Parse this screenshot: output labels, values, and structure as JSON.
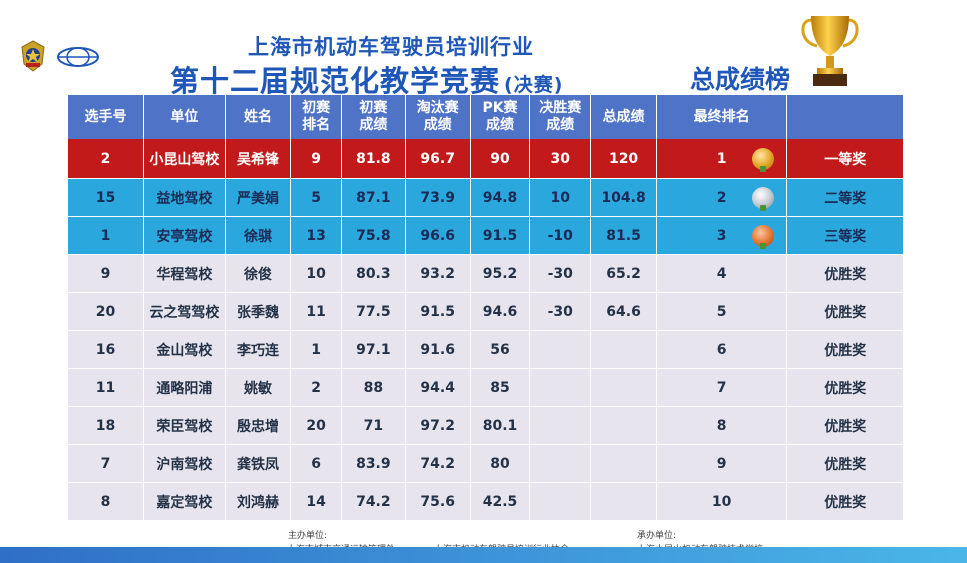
{
  "header": {
    "org_title": "上海市机动车驾驶员培训行业",
    "main_title": "第十二届规范化教学竞赛",
    "main_title_sub": "(决赛)",
    "board_title": "总成绩榜"
  },
  "table": {
    "columns": [
      {
        "key": "no",
        "line1": "选手号",
        "line2": ""
      },
      {
        "key": "unit",
        "line1": "单位",
        "line2": ""
      },
      {
        "key": "name",
        "line1": "姓名",
        "line2": ""
      },
      {
        "key": "prelim_rank",
        "line1": "初赛",
        "line2": "排名"
      },
      {
        "key": "prelim_score",
        "line1": "初赛",
        "line2": "成绩"
      },
      {
        "key": "elim_score",
        "line1": "淘汰赛",
        "line2": "成绩"
      },
      {
        "key": "pk_score",
        "line1": "PK赛",
        "line2": "成绩"
      },
      {
        "key": "final_score",
        "line1": "决胜赛",
        "line2": "成绩"
      },
      {
        "key": "total",
        "line1": "总成绩",
        "line2": ""
      },
      {
        "key": "rank",
        "line1": "最终排名",
        "line2": ""
      },
      {
        "key": "award",
        "line1": "",
        "line2": ""
      }
    ],
    "rows": [
      {
        "no": "2",
        "unit": "小昆山驾校",
        "name": "吴希锋",
        "prelim_rank": "9",
        "prelim_score": "81.8",
        "elim_score": "96.7",
        "pk_score": "90",
        "final_score": "30",
        "total": "120",
        "rank": "1",
        "award": "一等奖",
        "medal": "gold"
      },
      {
        "no": "15",
        "unit": "益地驾校",
        "name": "严美娟",
        "prelim_rank": "5",
        "prelim_score": "87.1",
        "elim_score": "73.9",
        "pk_score": "94.8",
        "final_score": "10",
        "total": "104.8",
        "rank": "2",
        "award": "二等奖",
        "medal": "silver"
      },
      {
        "no": "1",
        "unit": "安亭驾校",
        "name": "徐骐",
        "prelim_rank": "13",
        "prelim_score": "75.8",
        "elim_score": "96.6",
        "pk_score": "91.5",
        "final_score": "-10",
        "total": "81.5",
        "rank": "3",
        "award": "三等奖",
        "medal": "bronze"
      },
      {
        "no": "9",
        "unit": "华程驾校",
        "name": "徐俊",
        "prelim_rank": "10",
        "prelim_score": "80.3",
        "elim_score": "93.2",
        "pk_score": "95.2",
        "final_score": "-30",
        "total": "65.2",
        "rank": "4",
        "award": "优胜奖",
        "medal": ""
      },
      {
        "no": "20",
        "unit": "云之驾驾校",
        "name": "张季魏",
        "prelim_rank": "11",
        "prelim_score": "77.5",
        "elim_score": "91.5",
        "pk_score": "94.6",
        "final_score": "-30",
        "total": "64.6",
        "rank": "5",
        "award": "优胜奖",
        "medal": ""
      },
      {
        "no": "16",
        "unit": "金山驾校",
        "name": "李巧连",
        "prelim_rank": "1",
        "prelim_score": "97.1",
        "elim_score": "91.6",
        "pk_score": "56",
        "final_score": "",
        "total": "",
        "rank": "6",
        "award": "优胜奖",
        "medal": ""
      },
      {
        "no": "11",
        "unit": "通略阳浦",
        "name": "姚敏",
        "prelim_rank": "2",
        "prelim_score": "88",
        "elim_score": "94.4",
        "pk_score": "85",
        "final_score": "",
        "total": "",
        "rank": "7",
        "award": "优胜奖",
        "medal": ""
      },
      {
        "no": "18",
        "unit": "荣臣驾校",
        "name": "殷忠增",
        "prelim_rank": "20",
        "prelim_score": "71",
        "elim_score": "97.2",
        "pk_score": "80.1",
        "final_score": "",
        "total": "",
        "rank": "8",
        "award": "优胜奖",
        "medal": ""
      },
      {
        "no": "7",
        "unit": "沪南驾校",
        "name": "龚铁凤",
        "prelim_rank": "6",
        "prelim_score": "83.9",
        "elim_score": "74.2",
        "pk_score": "80",
        "final_score": "",
        "total": "",
        "rank": "9",
        "award": "优胜奖",
        "medal": ""
      },
      {
        "no": "8",
        "unit": "嘉定驾校",
        "name": "刘鸿赫",
        "prelim_rank": "14",
        "prelim_score": "74.2",
        "elim_score": "75.6",
        "pk_score": "42.5",
        "final_score": "",
        "total": "",
        "rank": "10",
        "award": "优胜奖",
        "medal": ""
      }
    ]
  },
  "footer": {
    "host_label": "主办单位:",
    "host_1": "上海市城市交通运输管理处",
    "host_2": "上海市机动车驾驶员培训行业协会",
    "organizer_label": "承办单位:",
    "organizer_1": "上海小昆山机动车驾驶技术学校"
  },
  "colors": {
    "title_blue": "#1f57b8",
    "header_bg": "#4f73c6",
    "first_row": "#c21a1a",
    "podium_row": "#2aa7dd",
    "other_row": "#e7e4ee"
  },
  "icons": {
    "logo_left": "emblem-logo-icon",
    "logo_right": "association-logo-icon",
    "trophy": "trophy-icon",
    "medals": [
      "gold-medal-icon",
      "silver-medal-icon",
      "bronze-medal-icon"
    ]
  }
}
